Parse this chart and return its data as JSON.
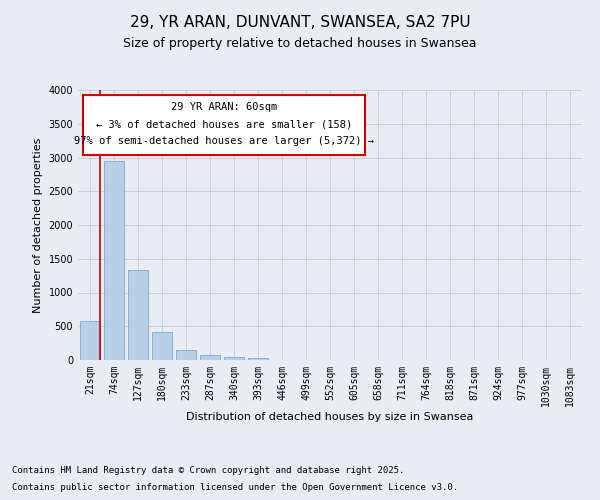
{
  "title1": "29, YR ARAN, DUNVANT, SWANSEA, SA2 7PU",
  "title2": "Size of property relative to detached houses in Swansea",
  "xlabel": "Distribution of detached houses by size in Swansea",
  "ylabel": "Number of detached properties",
  "categories": [
    "21sqm",
    "74sqm",
    "127sqm",
    "180sqm",
    "233sqm",
    "287sqm",
    "340sqm",
    "393sqm",
    "446sqm",
    "499sqm",
    "552sqm",
    "605sqm",
    "658sqm",
    "711sqm",
    "764sqm",
    "818sqm",
    "871sqm",
    "924sqm",
    "977sqm",
    "1030sqm",
    "1083sqm"
  ],
  "values": [
    580,
    2950,
    1330,
    420,
    150,
    80,
    50,
    30,
    5,
    2,
    1,
    0,
    0,
    0,
    0,
    0,
    0,
    0,
    0,
    0,
    0
  ],
  "bar_color": "#b8cfe8",
  "bar_edge_color": "#6a9fc8",
  "grid_color": "#c8d0dc",
  "bg_color": "#e8ecf4",
  "annotation_box_color": "#cc0000",
  "annotation_line_color": "#cc0000",
  "annotation_title": "29 YR ARAN: 60sqm",
  "annotation_line2": "← 3% of detached houses are smaller (158)",
  "annotation_line3": "97% of semi-detached houses are larger (5,372) →",
  "ylim": [
    0,
    4000
  ],
  "yticks": [
    0,
    500,
    1000,
    1500,
    2000,
    2500,
    3000,
    3500,
    4000
  ],
  "title1_fontsize": 11,
  "title2_fontsize": 9,
  "tick_fontsize": 7,
  "label_fontsize": 8,
  "annotation_fontsize": 7.5,
  "footnote_fontsize": 6.5
}
